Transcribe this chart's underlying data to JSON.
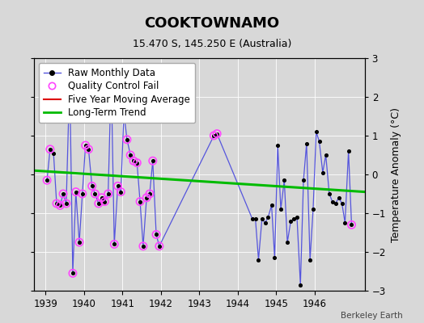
{
  "title": "COOKTOWNAMO",
  "subtitle": "15.470 S, 145.250 E (Australia)",
  "ylabel": "Temperature Anomaly (°C)",
  "watermark": "Berkeley Earth",
  "xlim": [
    1938.7,
    1947.3
  ],
  "ylim": [
    -3,
    3
  ],
  "yticks": [
    -3,
    -2,
    -1,
    0,
    1,
    2,
    3
  ],
  "xticks": [
    1939,
    1940,
    1941,
    1942,
    1943,
    1944,
    1945,
    1946
  ],
  "bg_color": "#d8d8d8",
  "plot_bg_color": "#d8d8d8",
  "raw_x": [
    1939.04,
    1939.12,
    1939.21,
    1939.29,
    1939.38,
    1939.46,
    1939.54,
    1939.63,
    1939.71,
    1939.79,
    1939.88,
    1939.96,
    1940.04,
    1940.12,
    1940.21,
    1940.29,
    1940.38,
    1940.46,
    1940.54,
    1940.63,
    1940.71,
    1940.79,
    1940.88,
    1940.96,
    1941.04,
    1941.12,
    1941.21,
    1941.29,
    1941.38,
    1941.46,
    1941.54,
    1941.63,
    1941.71,
    1941.79,
    1941.88,
    1941.96,
    1943.38,
    1943.46,
    1944.38,
    1944.46,
    1944.54,
    1944.63,
    1944.71,
    1944.79,
    1944.88,
    1944.96,
    1945.04,
    1945.12,
    1945.21,
    1945.29,
    1945.38,
    1945.46,
    1945.54,
    1945.63,
    1945.71,
    1945.79,
    1945.88,
    1945.96,
    1946.04,
    1946.12,
    1946.21,
    1946.29,
    1946.38,
    1946.46,
    1946.54,
    1946.63,
    1946.71,
    1946.79,
    1946.88,
    1946.96
  ],
  "raw_y": [
    -0.15,
    0.65,
    0.55,
    -0.75,
    -0.8,
    -0.5,
    -0.75,
    2.5,
    -2.55,
    -0.45,
    -1.75,
    -0.5,
    0.75,
    0.65,
    -0.3,
    -0.5,
    -0.75,
    -0.6,
    -0.7,
    -0.5,
    2.55,
    -1.8,
    -0.3,
    -0.45,
    1.6,
    0.9,
    0.5,
    0.35,
    0.3,
    -0.7,
    -1.85,
    -0.6,
    -0.5,
    0.35,
    -1.55,
    -1.85,
    1.0,
    1.05,
    -1.15,
    -1.15,
    -2.2,
    -1.15,
    -1.25,
    -1.1,
    -0.8,
    -2.15,
    0.75,
    -0.9,
    -0.15,
    -1.75,
    -1.2,
    -1.15,
    -1.1,
    -2.85,
    -0.15,
    0.8,
    -2.2,
    -0.9,
    1.1,
    0.85,
    0.05,
    0.5,
    -0.5,
    -0.7,
    -0.75,
    -0.6,
    -0.75,
    -1.25,
    0.6,
    -1.3
  ],
  "qc_fail_x": [
    1939.04,
    1939.12,
    1939.29,
    1939.38,
    1939.46,
    1939.54,
    1939.63,
    1939.71,
    1939.79,
    1939.88,
    1939.96,
    1940.04,
    1940.12,
    1940.21,
    1940.29,
    1940.38,
    1940.46,
    1940.54,
    1940.63,
    1940.71,
    1940.79,
    1940.88,
    1940.96,
    1941.04,
    1941.12,
    1941.21,
    1941.29,
    1941.38,
    1941.46,
    1941.54,
    1941.63,
    1941.71,
    1941.79,
    1941.88,
    1941.96,
    1943.38,
    1943.46,
    1946.96
  ],
  "qc_fail_y": [
    -0.15,
    0.65,
    -0.75,
    -0.8,
    -0.5,
    -0.75,
    2.5,
    -2.55,
    -0.45,
    -1.75,
    -0.5,
    0.75,
    0.65,
    -0.3,
    -0.5,
    -0.75,
    -0.6,
    -0.7,
    -0.5,
    2.55,
    -1.8,
    -0.3,
    -0.45,
    1.6,
    0.9,
    0.5,
    0.35,
    0.3,
    -0.7,
    -1.85,
    -0.6,
    -0.5,
    0.35,
    -1.55,
    -1.85,
    1.0,
    1.05,
    -1.3
  ],
  "trend_x": [
    1938.7,
    1947.3
  ],
  "trend_y": [
    0.1,
    -0.45
  ],
  "line_color": "#5555dd",
  "dot_color": "#000000",
  "qc_color": "#ff44ff",
  "trend_color": "#00bb00",
  "ma_color": "#dd0000",
  "title_fontsize": 13,
  "subtitle_fontsize": 9,
  "tick_fontsize": 8.5,
  "legend_fontsize": 8.5
}
